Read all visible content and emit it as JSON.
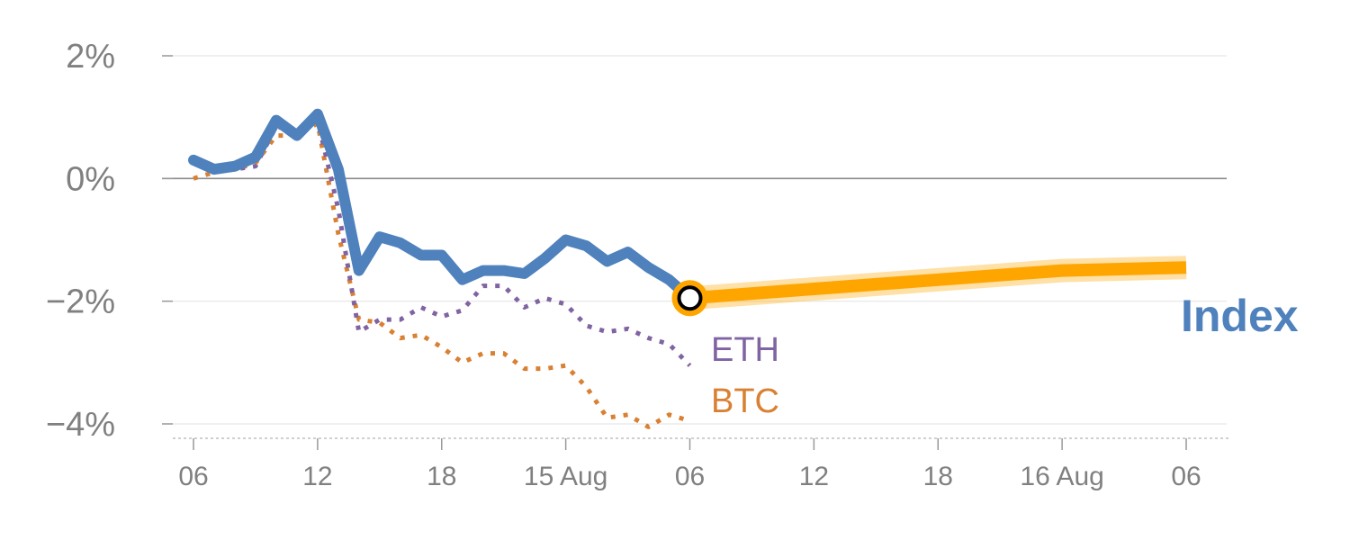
{
  "chart_data": {
    "type": "line",
    "ylim": [
      -4.2,
      2.2
    ],
    "y_ticks": [
      {
        "value": 2,
        "label": "2%"
      },
      {
        "value": 0,
        "label": "0%"
      },
      {
        "value": -2,
        "label": "−2%"
      },
      {
        "value": -4,
        "label": "−4%"
      }
    ],
    "xlim": [
      0,
      48
    ],
    "x_ticks": [
      {
        "hour": 0,
        "label": "06"
      },
      {
        "hour": 6,
        "label": "12"
      },
      {
        "hour": 12,
        "label": "18"
      },
      {
        "hour": 18,
        "label": "15 Aug"
      },
      {
        "hour": 24,
        "label": "06"
      },
      {
        "hour": 30,
        "label": "12"
      },
      {
        "hour": 36,
        "label": "18"
      },
      {
        "hour": 42,
        "label": "16 Aug"
      },
      {
        "hour": 48,
        "label": "06"
      }
    ],
    "series": [
      {
        "name": "Index",
        "color": "#4f81bd",
        "x": [
          0,
          1,
          2,
          3,
          4,
          5,
          6,
          7,
          8,
          9,
          10,
          11,
          12,
          13,
          14,
          15,
          16,
          17,
          18,
          19,
          20,
          21,
          22,
          23,
          24
        ],
        "y": [
          0.3,
          0.15,
          0.2,
          0.35,
          0.95,
          0.7,
          1.05,
          0.15,
          -1.5,
          -0.95,
          -1.05,
          -1.25,
          -1.25,
          -1.65,
          -1.5,
          -1.5,
          -1.55,
          -1.3,
          -1.0,
          -1.1,
          -1.35,
          -1.2,
          -1.45,
          -1.65,
          -1.95
        ]
      },
      {
        "name": "ETH",
        "color": "#8064a2",
        "x": [
          0,
          1,
          2,
          3,
          4,
          5,
          6,
          7,
          8,
          9,
          10,
          11,
          12,
          13,
          14,
          15,
          16,
          17,
          18,
          19,
          20,
          21,
          22,
          23,
          24
        ],
        "y": [
          0.35,
          0.15,
          0.15,
          0.2,
          0.85,
          0.75,
          0.95,
          -0.5,
          -2.5,
          -2.3,
          -2.3,
          -2.1,
          -2.25,
          -2.15,
          -1.75,
          -1.75,
          -2.1,
          -1.95,
          -2.05,
          -2.4,
          -2.5,
          -2.45,
          -2.6,
          -2.7,
          -3.05
        ]
      },
      {
        "name": "BTC",
        "color": "#d98032",
        "x": [
          0,
          1,
          2,
          3,
          4,
          5,
          6,
          7,
          8,
          9,
          10,
          11,
          12,
          13,
          14,
          15,
          16,
          17,
          18,
          19,
          20,
          21,
          22,
          23,
          24
        ],
        "y": [
          0.0,
          0.1,
          0.15,
          0.25,
          0.7,
          0.7,
          0.9,
          -0.9,
          -2.3,
          -2.35,
          -2.6,
          -2.55,
          -2.75,
          -3.0,
          -2.85,
          -2.85,
          -3.1,
          -3.1,
          -3.05,
          -3.4,
          -3.9,
          -3.85,
          -4.05,
          -3.85,
          -3.95
        ]
      },
      {
        "name": "Index",
        "color": "#ffa500",
        "x": [
          24,
          30,
          36,
          42,
          48
        ],
        "y": [
          -1.95,
          -1.8,
          -1.65,
          -1.5,
          -1.45
        ]
      }
    ],
    "labels": {
      "eth": "ETH",
      "btc": "BTC",
      "index": "Index"
    }
  }
}
